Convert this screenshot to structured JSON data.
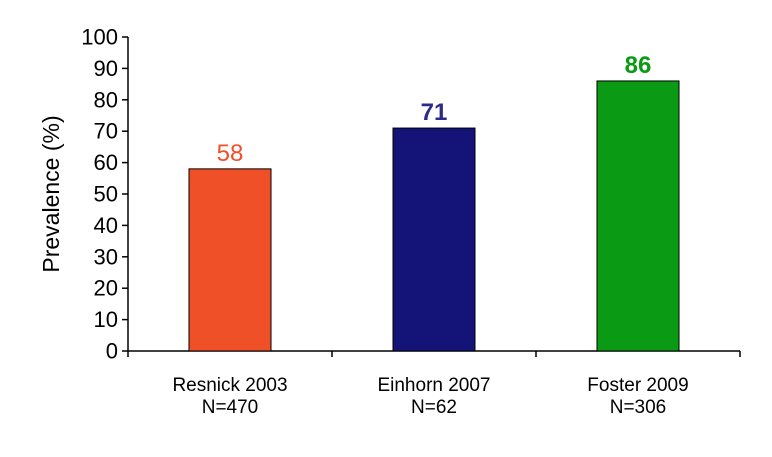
{
  "chart_data": {
    "type": "bar",
    "categories": [
      {
        "line1": "Resnick 2003",
        "line2": "N=470"
      },
      {
        "line1": "Einhorn 2007",
        "line2": "N=62"
      },
      {
        "line1": "Foster 2009",
        "line2": "N=306"
      }
    ],
    "values": [
      58,
      71,
      86
    ],
    "data_labels": [
      "58",
      "71",
      "86"
    ],
    "colors": [
      "#f05028",
      "#141478",
      "#0a9a14"
    ],
    "label_colors": [
      "#f05028",
      "#2b2b8a",
      "#0a9a14"
    ],
    "label_bold": [
      false,
      true,
      true
    ],
    "ylabel": "Prevalence (%)",
    "ylim": [
      0,
      100
    ],
    "yticks": [
      0,
      10,
      20,
      30,
      40,
      50,
      60,
      70,
      80,
      90,
      100
    ],
    "grid": false,
    "legend": "none"
  }
}
